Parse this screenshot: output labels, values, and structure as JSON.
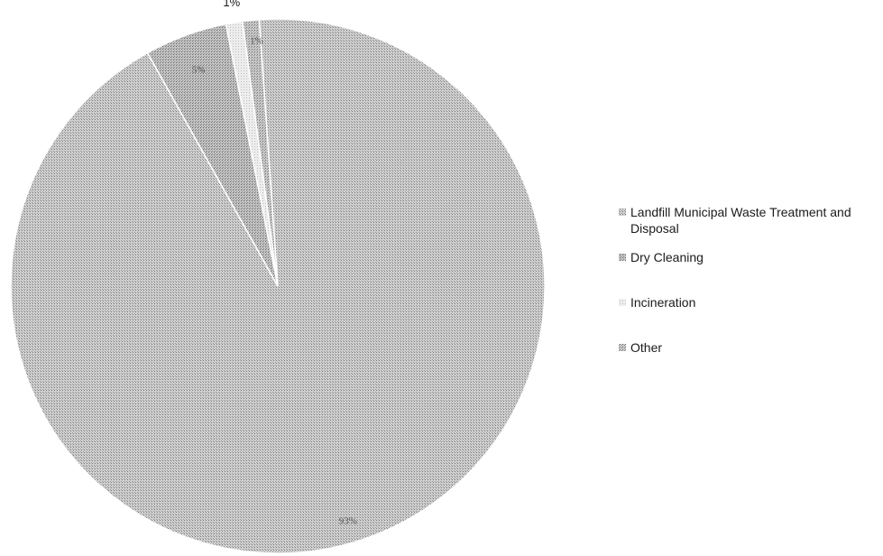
{
  "chart_data": {
    "type": "pie",
    "title": "",
    "categories": [
      "Landfill Municipal Waste Treatment and Disposal",
      "Dry Cleaning",
      "Incineration",
      "Other"
    ],
    "values": [
      93,
      5,
      1,
      1
    ],
    "data_labels": [
      "93%",
      "5%",
      "1%",
      "1%"
    ],
    "colors": [
      "#c4c4c4",
      "#b4b4b4",
      "#e6e6e6",
      "#bdbdbd"
    ],
    "start_angle_deg": -4,
    "legend_position": "right",
    "grid": false
  }
}
